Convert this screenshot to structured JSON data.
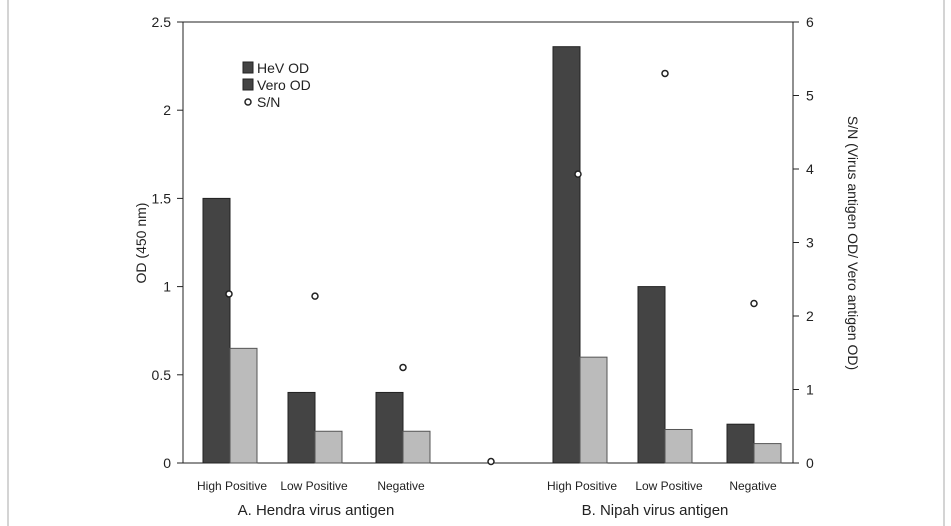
{
  "chart_data": {
    "type": "bar",
    "panels": [
      {
        "label": "A. Hendra virus antigen",
        "categories": [
          "High Positive",
          "Low Positive",
          "Negative"
        ],
        "series": [
          {
            "name": "HeV OD",
            "type": "bar",
            "axis": "left",
            "values": [
              1.5,
              0.4,
              0.4
            ]
          },
          {
            "name": "Vero OD",
            "type": "bar",
            "axis": "left",
            "values": [
              0.65,
              0.18,
              0.18
            ]
          },
          {
            "name": "S/N",
            "type": "scatter",
            "axis": "right",
            "values": [
              2.3,
              2.27,
              1.3
            ]
          }
        ]
      },
      {
        "label": "B. Nipah virus antigen",
        "categories": [
          "High Positive",
          "Low Positive",
          "Negative"
        ],
        "series": [
          {
            "name": "",
            "type": "bar",
            "axis": "left",
            "values": [
              2.36,
              1.0,
              0.22
            ]
          },
          {
            "name": "Vero OD",
            "type": "bar",
            "axis": "left",
            "values": [
              0.6,
              0.19,
              0.11
            ]
          },
          {
            "name": "S/N",
            "type": "scatter",
            "axis": "right",
            "values": [
              3.93,
              5.3,
              2.17
            ]
          }
        ]
      }
    ],
    "extra_point": {
      "series": "S/N",
      "axis": "right",
      "value": 0.02
    },
    "y_left": {
      "label": "OD (450 nm)",
      "min": 0,
      "max": 2.5,
      "ticks": [
        "0",
        "0.5",
        "1",
        "1.5",
        "2",
        "2.5"
      ]
    },
    "y_right": {
      "label": "S/N (Virus antigen OD/ Vero antigen OD)",
      "min": 0,
      "max": 6,
      "ticks": [
        "0",
        "1",
        "2",
        "3",
        "4",
        "5",
        "6"
      ]
    },
    "legend": {
      "placement": "top-left",
      "items": [
        {
          "label": "HeV OD",
          "marker": "square"
        },
        {
          "label": "Vero OD",
          "marker": "square"
        },
        {
          "label": "S/N",
          "marker": "circle"
        }
      ]
    },
    "colors": {
      "primary_bar": "#444444",
      "vero_bar": "#bbbbbb",
      "point_fill": "#ffffff",
      "point_stroke": "#222222",
      "frame": "#222222"
    },
    "grid": false
  }
}
